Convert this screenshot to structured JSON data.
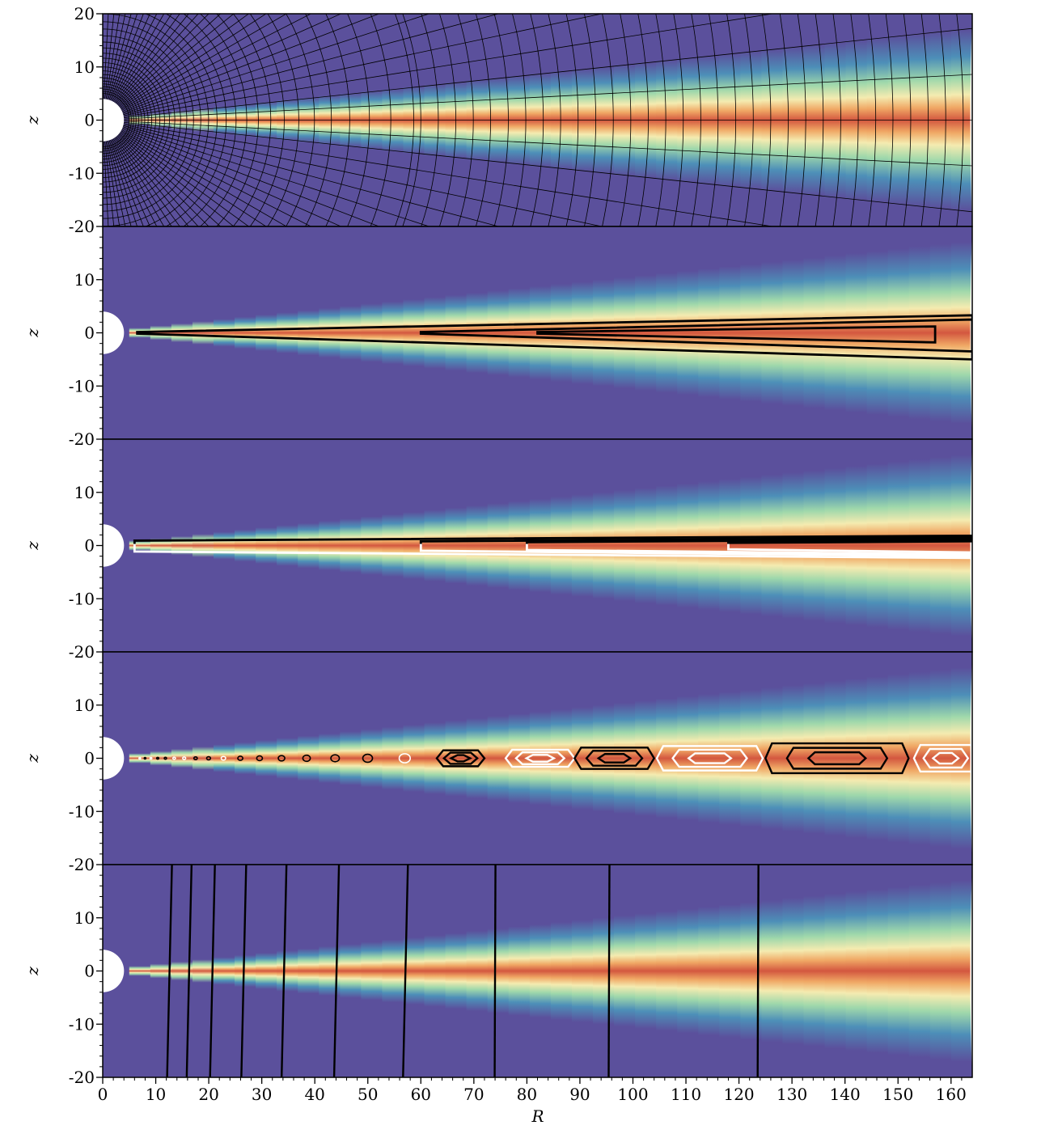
{
  "chart_data": {
    "type": "heatmap",
    "description_count": 5,
    "xlabel": "R",
    "ylabel": "z",
    "xlim": [
      0,
      164
    ],
    "ylim": [
      -20,
      20
    ],
    "xticks": [
      0,
      10,
      20,
      30,
      40,
      50,
      60,
      70,
      80,
      90,
      100,
      110,
      120,
      130,
      140,
      150,
      160
    ],
    "xtick_labels": [
      "0",
      "10",
      "20",
      "30",
      "40",
      "50",
      "60",
      "70",
      "80",
      "90",
      "100",
      "110",
      "120",
      "130",
      "140",
      "150",
      "160"
    ],
    "yticks_top_panel": [
      20,
      10,
      0,
      -10,
      -20
    ],
    "yticks_top_panel_labels": [
      "20",
      "10",
      "0",
      "-10",
      "-20"
    ],
    "yticks_other_panels": [
      10,
      0,
      -10,
      -20
    ],
    "yticks_other_panels_labels": [
      "10",
      "0",
      "-10",
      "-20"
    ],
    "colors": {
      "background": "#5b509c",
      "disk_mid": "#d3573f",
      "disk_edge": "#f4ebb0",
      "contour_dark": "#000000",
      "contour_light": "#ffffff"
    },
    "panels": [
      {
        "id": "panel-1-grid",
        "field": "density",
        "overlay": "mesh",
        "mesh_refinement_boundary_R": 60,
        "disk_half_opening_z_per_R": 0.052
      },
      {
        "id": "panel-2-contours",
        "field": "density",
        "overlay": "contours",
        "contour_color": "black",
        "loops": [
          {
            "R_start": 6.5,
            "R_end": 164,
            "z_top_end": 3.3,
            "z_bot_end": -5
          },
          {
            "R_start": 60,
            "R_end": 164,
            "z_top_end": 2.5,
            "z_bot_end": -3.5
          },
          {
            "R_start": 82,
            "R_end": 157,
            "z_top_end": 1.2,
            "z_bot_end": -1.8
          }
        ]
      },
      {
        "id": "panel-3-contours",
        "field": "density",
        "overlay": "contours",
        "upper_color": "black",
        "lower_color": "white",
        "nested_starts_R": [
          6,
          60,
          80,
          118
        ]
      },
      {
        "id": "panel-4-islands",
        "field": "density",
        "overlay": "island contours",
        "islands": [
          {
            "R_center": 67.5,
            "half_width": 4.5,
            "color": "black",
            "half_height": 1.5
          },
          {
            "R_center": 82.5,
            "half_width": 6.5,
            "color": "white",
            "half_height": 1.6
          },
          {
            "R_center": 96.5,
            "half_width": 7.5,
            "color": "black",
            "half_height": 2.0
          },
          {
            "R_center": 114.5,
            "half_width": 10,
            "color": "white",
            "half_height": 2.3
          },
          {
            "R_center": 138.5,
            "half_width": 13.5,
            "color": "black",
            "half_height": 2.8
          },
          {
            "R_center": 159,
            "half_width": 6,
            "color": "white",
            "half_height": 2.5
          }
        ]
      },
      {
        "id": "panel-5-field-lines",
        "field": "density",
        "overlay": "field lines",
        "vertical_lines_R": [
          12.6,
          16.3,
          20.7,
          26.6,
          34.2,
          44.1,
          57.1,
          74.0,
          95.5,
          123.6
        ]
      }
    ]
  }
}
